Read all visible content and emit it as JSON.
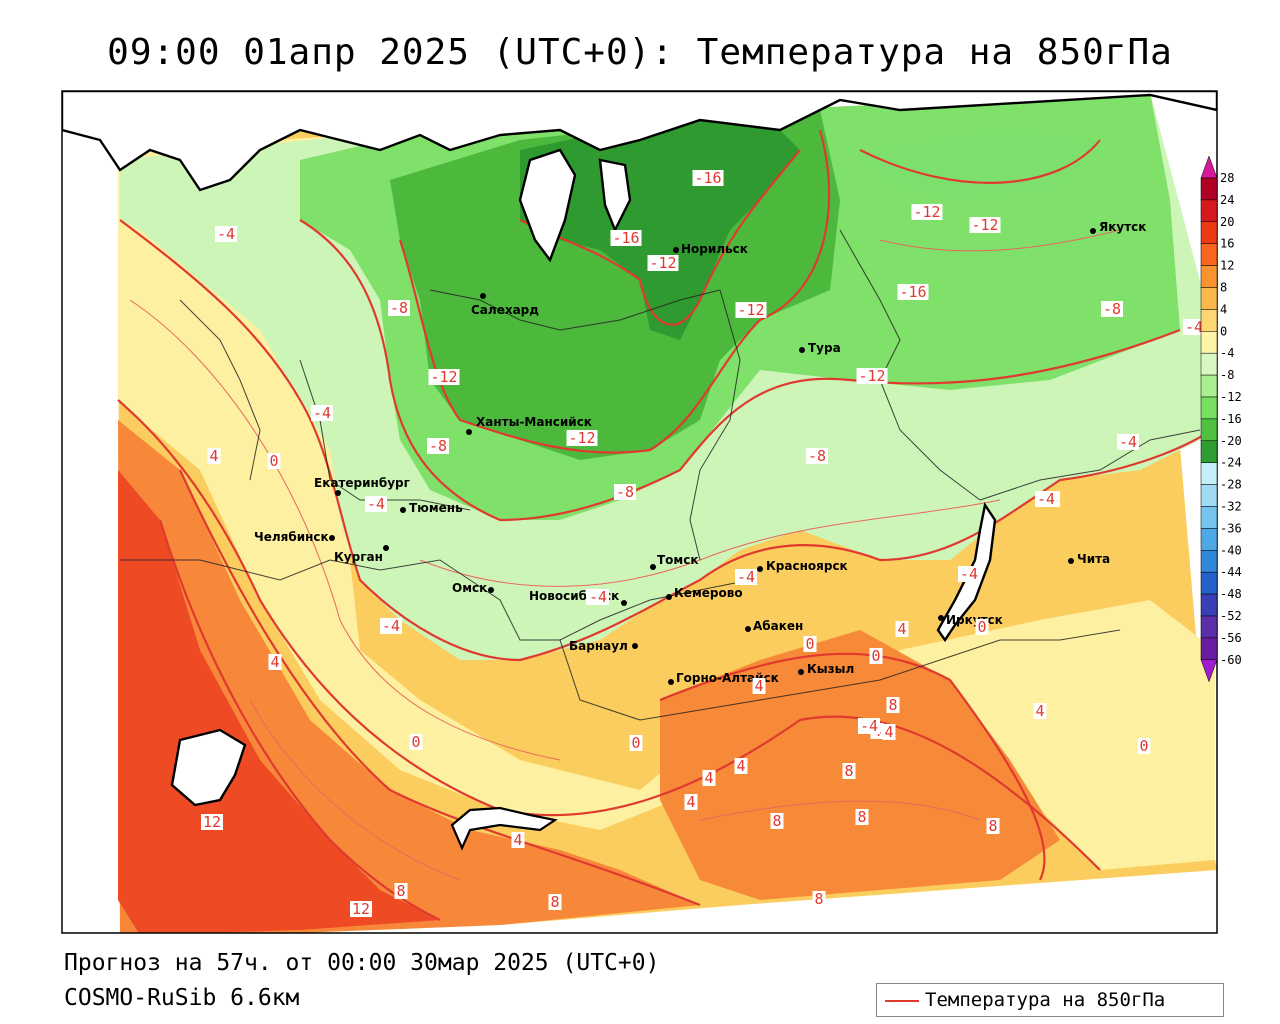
{
  "title": "09:00 01апр 2025 (UTC+0): Температура на 850гПа",
  "footer": {
    "forecast": "Прогноз на 57ч. от 00:00 30мар 2025 (UTC+0)",
    "model": "COSMO-RuSib 6.6км"
  },
  "legend": {
    "label": "Температура на 850гПа",
    "line_color": "#e03a30"
  },
  "colorbar": {
    "ticks": [
      "28",
      "24",
      "20",
      "16",
      "12",
      "8",
      "4",
      "0",
      "-4",
      "-8",
      "-12",
      "-16",
      "-20",
      "-24",
      "-28",
      "-32",
      "-36",
      "-40",
      "-44",
      "-48",
      "-52",
      "-56",
      "-60"
    ],
    "colors": [
      "#b00026",
      "#d7181c",
      "#ee3a14",
      "#f7661c",
      "#fb9430",
      "#fdb84c",
      "#fed772",
      "#fff3a8",
      "#d9f7c0",
      "#aaf090",
      "#78e060",
      "#4fc040",
      "#2e9e32",
      "#c5eff7",
      "#9fdcf3",
      "#74c4ee",
      "#4ea8e6",
      "#2f86da",
      "#2262c8",
      "#3a3fb5",
      "#5a2fa8",
      "#6a1ca0"
    ],
    "top_color": "#d6189a",
    "bottom_color": "#a01cd0"
  },
  "cities": [
    {
      "name": "Салехард"
    },
    {
      "name": "Норильск"
    },
    {
      "name": "Якутск"
    },
    {
      "name": "Тура"
    },
    {
      "name": "Ханты-Мансийск"
    },
    {
      "name": "Екатеринбург"
    },
    {
      "name": "Тюмень"
    },
    {
      "name": "Челябинск"
    },
    {
      "name": "Курган"
    },
    {
      "name": "Омск"
    },
    {
      "name": "Новосибирск"
    },
    {
      "name": "Томск"
    },
    {
      "name": "Кемерово"
    },
    {
      "name": "Красноярск"
    },
    {
      "name": "Барнаул"
    },
    {
      "name": "Абакен"
    },
    {
      "name": "Горно-Алтайск"
    },
    {
      "name": "Кызыл"
    },
    {
      "name": "Иркутск"
    },
    {
      "name": "Чита"
    }
  ],
  "isoline_labels": [
    "-4",
    "-8",
    "-16",
    "-12",
    "-16",
    "-12",
    "-12",
    "-12",
    "-16",
    "-12",
    "-8",
    "-8",
    "-4",
    "-12",
    "-8",
    "-12",
    "-8",
    "-4",
    "-4",
    "4",
    "0",
    "-4",
    "-4",
    "-4",
    "-4",
    "-4",
    "-4",
    "-4",
    "0",
    "4",
    "0",
    "4",
    "4",
    "0",
    "0",
    "4",
    "4",
    "8",
    "4",
    "4",
    "12",
    "12",
    "8",
    "4",
    "4",
    "8",
    "8",
    "8",
    "8",
    "8",
    "0",
    "4",
    "0",
    "8",
    "-4",
    "-4"
  ]
}
